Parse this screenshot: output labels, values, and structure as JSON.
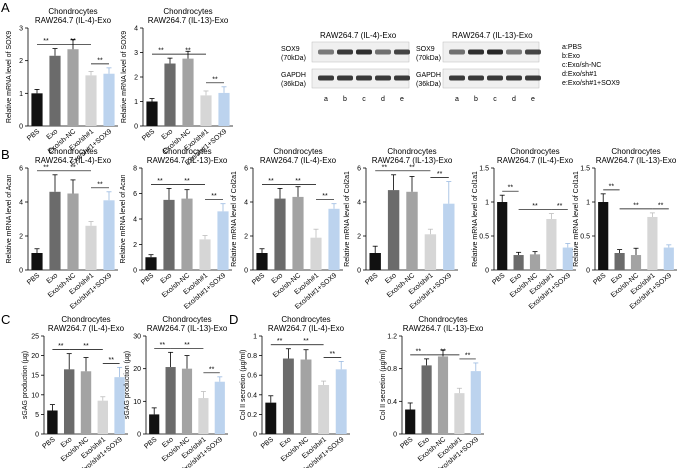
{
  "figure": {
    "panel_labels": [
      "A",
      "B",
      "C",
      "D"
    ],
    "categories": [
      "PBS",
      "Exo",
      "Exo/sh-NC",
      "Exo/sh#1",
      "Exo/sh#1+SOX9"
    ],
    "categories_d": [
      "PBS",
      "Exo",
      "Exo/sh-NC",
      "Exo/sh#1",
      "Exo/sh#1+SOX9"
    ],
    "colors": [
      "#111111",
      "#6b6b6b",
      "#a3a3a3",
      "#d6d6d6",
      "#bcd3ee"
    ],
    "sig_label": "**"
  },
  "blot": {
    "header_il4": "RAW264.7 (IL-4)-Exo",
    "header_il13": "RAW264.7 (IL-13)-Exo",
    "row1_label": "SOX9",
    "row1_kda": "(70kDa)",
    "row2_label": "GAPDH",
    "row2_kda": "(36kDa)",
    "lanes": [
      "a",
      "b",
      "c",
      "d",
      "e"
    ],
    "key": [
      "a:PBS",
      "b:Exo",
      "c:Exo/sh-NC",
      "d:Exo/sh#1",
      "e:Exo/sh#1+SOX9"
    ]
  },
  "chart_data": [
    {
      "id": "A1",
      "type": "bar",
      "title": "Chondrocytes",
      "subtitle": "RAW264.7 (IL-4)-Exo",
      "ylabel": "Relative mRNA level of SOX9",
      "ylim": [
        0,
        3
      ],
      "yticks": [
        0,
        1,
        2,
        3
      ],
      "values": [
        1.0,
        2.15,
        2.35,
        1.55,
        1.6
      ],
      "errors": [
        0.12,
        0.22,
        0.3,
        0.12,
        0.18
      ]
    },
    {
      "id": "A2",
      "type": "bar",
      "title": "Chondrocytes",
      "subtitle": "RAW264.7 (IL-13)-Exo",
      "ylabel": "Relative mRNA level of SOX9",
      "ylim": [
        0,
        4
      ],
      "yticks": [
        0,
        1,
        2,
        3,
        4
      ],
      "values": [
        1.0,
        2.55,
        2.75,
        1.25,
        1.35
      ],
      "errors": [
        0.12,
        0.22,
        0.3,
        0.18,
        0.25
      ]
    },
    {
      "id": "B1",
      "type": "bar",
      "title": "Chondrocytes",
      "subtitle": "RAW264.7 (IL-4)-Exo",
      "ylabel": "Relative mRNA level of Acan",
      "ylim": [
        0,
        6
      ],
      "yticks": [
        0,
        2,
        4,
        6
      ],
      "values": [
        1.0,
        4.6,
        4.5,
        2.6,
        4.1
      ],
      "errors": [
        0.25,
        1.0,
        0.8,
        0.25,
        0.5
      ]
    },
    {
      "id": "B2",
      "type": "bar",
      "title": "Chondrocytes",
      "subtitle": "RAW264.7 (IL-13)-Exo",
      "ylabel": "Relative mRNA level of Acan",
      "ylim": [
        0,
        8
      ],
      "yticks": [
        0,
        2,
        4,
        6,
        8
      ],
      "values": [
        1.0,
        5.5,
        5.6,
        2.4,
        4.6
      ],
      "errors": [
        0.2,
        0.9,
        0.7,
        0.3,
        0.6
      ]
    },
    {
      "id": "B3",
      "type": "bar",
      "title": "Chondrocytes",
      "subtitle": "RAW264.7 (IL-4)-Exo",
      "ylabel": "Relative mRNA level of Col2a1",
      "ylim": [
        0,
        6
      ],
      "yticks": [
        0,
        2,
        4,
        6
      ],
      "values": [
        1.0,
        4.2,
        4.3,
        1.9,
        3.6
      ],
      "errors": [
        0.25,
        0.6,
        0.6,
        0.5,
        0.3
      ]
    },
    {
      "id": "B4",
      "type": "bar",
      "title": "Chondrocytes",
      "subtitle": "RAW264.7 (IL-13)-Exo",
      "ylabel": "Relative mRNA level of Col2a1",
      "ylim": [
        0,
        6
      ],
      "yticks": [
        0,
        2,
        4,
        6
      ],
      "values": [
        1.0,
        4.7,
        4.6,
        2.1,
        3.9
      ],
      "errors": [
        0.4,
        0.9,
        0.9,
        0.3,
        1.3
      ]
    },
    {
      "id": "B5",
      "type": "bar",
      "title": "Chondrocytes",
      "subtitle": "RAW264.7 (IL-4)-Exo",
      "ylabel": "Relative mRNA level of Col1a1",
      "ylim": [
        0,
        1.5
      ],
      "yticks": [
        0,
        0.5,
        1.0,
        1.5
      ],
      "values": [
        1.0,
        0.22,
        0.23,
        0.75,
        0.33
      ],
      "errors": [
        0.1,
        0.04,
        0.04,
        0.08,
        0.06
      ]
    },
    {
      "id": "B6",
      "type": "bar",
      "title": "Chondrocytes",
      "subtitle": "RAW264.7 (IL-13)-Exo",
      "ylabel": "Relative mRNA level of Col1a1",
      "ylim": [
        0,
        1.5
      ],
      "yticks": [
        0,
        0.5,
        1.0,
        1.5
      ],
      "values": [
        1.0,
        0.25,
        0.22,
        0.78,
        0.33
      ],
      "errors": [
        0.12,
        0.05,
        0.1,
        0.06,
        0.04
      ]
    },
    {
      "id": "C1",
      "type": "bar",
      "title": "Chondrocytes",
      "subtitle": "RAW264.7 (IL-4)-Exo",
      "ylabel": "sGAG production (µg)",
      "ylim": [
        0,
        25
      ],
      "yticks": [
        0,
        5,
        10,
        15,
        20,
        25
      ],
      "values": [
        6.0,
        16.5,
        16.0,
        8.5,
        14.5
      ],
      "errors": [
        1.5,
        4.0,
        3.5,
        1.0,
        2.5
      ]
    },
    {
      "id": "C2",
      "type": "bar",
      "title": "Chondrocytes",
      "subtitle": "RAW264.7 (IL-13)-Exo",
      "ylabel": "sGAG production (µg)",
      "ylim": [
        0,
        30
      ],
      "yticks": [
        0,
        10,
        20,
        30
      ],
      "values": [
        6.0,
        20.5,
        20.0,
        11.0,
        16.0
      ],
      "errors": [
        2.0,
        4.5,
        4.0,
        2.0,
        1.5
      ]
    },
    {
      "id": "D1",
      "type": "bar",
      "title": "Chondrocytes",
      "subtitle": "RAW264.7 (IL-4)-Exo",
      "ylabel": "Col II secretion (µg/ml)",
      "ylim": [
        0,
        1.0
      ],
      "yticks": [
        0,
        0.2,
        0.4,
        0.6,
        0.8,
        1.0
      ],
      "values": [
        0.32,
        0.77,
        0.76,
        0.5,
        0.66
      ],
      "errors": [
        0.07,
        0.1,
        0.1,
        0.04,
        0.08
      ]
    },
    {
      "id": "D2",
      "type": "bar",
      "title": "Chondrocytes",
      "subtitle": "RAW264.7 (IL-13)-Exo",
      "ylabel": "Col II secretion (µg/ml)",
      "ylim": [
        0,
        1.2
      ],
      "yticks": [
        0,
        0.4,
        0.8,
        1.2
      ],
      "values": [
        0.3,
        0.84,
        0.95,
        0.5,
        0.77
      ],
      "errors": [
        0.08,
        0.08,
        0.08,
        0.06,
        0.1
      ]
    }
  ]
}
